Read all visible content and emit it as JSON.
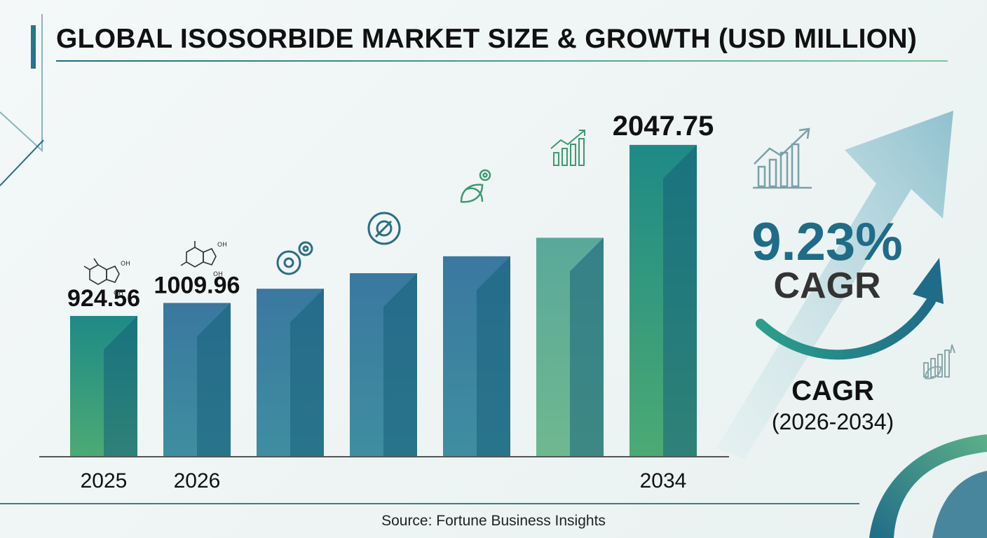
{
  "title": "GLOBAL ISOSORBIDE MARKET SIZE & GROWTH (USD MILLION)",
  "chart_data": {
    "type": "bar",
    "categories": [
      "2025",
      "2026",
      "",
      "",
      "",
      "",
      "2034"
    ],
    "values": [
      924.56,
      1009.96,
      1103.24,
      1205.13,
      1316.43,
      1438.01,
      2047.75
    ],
    "data_labels": [
      "924.56",
      "1009.96",
      "",
      "",
      "",
      "",
      "2047.75"
    ],
    "ylim": [
      0,
      2300
    ],
    "grid": false,
    "legend": "none"
  },
  "cagr": {
    "value": "9.23%",
    "word": "CAGR",
    "label": "CAGR",
    "period": "(2026-2034)"
  },
  "source": "Source: Fortune Business Insights",
  "colors": {
    "teal": "#1e8a86",
    "blue": "#3a78a0",
    "green": "#4caa74",
    "dark_blue": "#1f6c88",
    "accent_line": "#3e7c8c"
  },
  "icons": [
    "molecule-icon",
    "molecule-icon",
    "gears-icon",
    "wrench-gear-icon",
    "leaf-gear-icon",
    "growth-chart-icon",
    "growth-chart-icon",
    "leaf-growth-icon"
  ]
}
